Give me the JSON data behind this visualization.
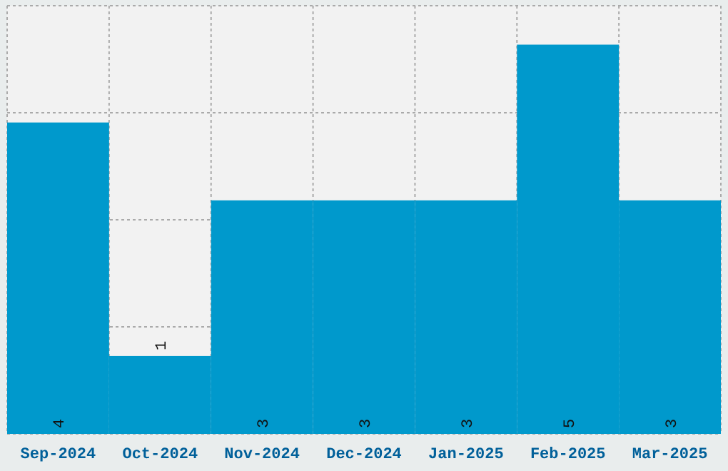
{
  "chart_data": {
    "type": "bar",
    "categories": [
      "Sep-2024",
      "Oct-2024",
      "Nov-2024",
      "Dec-2024",
      "Jan-2025",
      "Feb-2025",
      "Mar-2025"
    ],
    "values": [
      4,
      1,
      3,
      3,
      3,
      5,
      3
    ],
    "color": "#0099cc",
    "ylim": [
      0,
      5.5
    ],
    "yticks": [
      {
        "value": 0,
        "label": null
      },
      {
        "value": 1.375,
        "label": null
      },
      {
        "value": 2.75,
        "label": null
      },
      {
        "value": 4.125,
        "label": null
      },
      {
        "value": 5.5,
        "label": null
      }
    ],
    "grid": true,
    "data_labels": true,
    "tick_labels": "x"
  }
}
